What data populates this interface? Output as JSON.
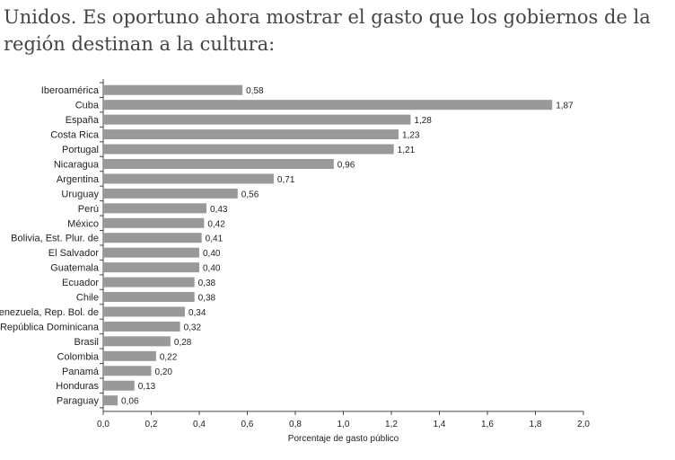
{
  "intro": {
    "line1": "Unidos. Es oportuno ahora mostrar el gasto que los gobiernos de la",
    "line2": "región destinan a la cultura:"
  },
  "chart_data": {
    "type": "bar",
    "orientation": "horizontal",
    "categories": [
      "Iberoamérica",
      "Cuba",
      "España",
      "Costa Rica",
      "Portugal",
      "Nicaragua",
      "Argentina",
      "Uruguay",
      "Perú",
      "México",
      "Bolivia, Est. Plur. de",
      "El Salvador",
      "Guatemala",
      "Ecuador",
      "Chile",
      "Venezuela, Rep. Bol. de",
      "República Dominicana",
      "Brasil",
      "Colombia",
      "Panamá",
      "Honduras",
      "Paraguay"
    ],
    "values": [
      0.58,
      1.87,
      1.28,
      1.23,
      1.21,
      0.96,
      0.71,
      0.56,
      0.43,
      0.42,
      0.41,
      0.4,
      0.4,
      0.38,
      0.38,
      0.34,
      0.32,
      0.28,
      0.22,
      0.2,
      0.13,
      0.06
    ],
    "value_labels": [
      "0,58",
      "1,87",
      "1,28",
      "1,23",
      "1,21",
      "0,96",
      "0,71",
      "0,56",
      "0,43",
      "0,42",
      "0,41",
      "0,40",
      "0,40",
      "0,38",
      "0,38",
      "0,34",
      "0,32",
      "0,28",
      "0,22",
      "0,20",
      "0,13",
      "0,06"
    ],
    "xlim": [
      0,
      2.0
    ],
    "xticks": [
      0,
      0.2,
      0.4,
      0.6,
      0.8,
      1.0,
      1.2,
      1.4,
      1.6,
      1.8,
      2.0
    ],
    "xtick_labels": [
      "0,0",
      "0,2",
      "0,4",
      "0,6",
      "0,8",
      "1,0",
      "1,2",
      "1,4",
      "1,6",
      "1,8",
      "2,0"
    ],
    "xlabel": "Porcentaje de gasto público",
    "ylabel": "",
    "title": "",
    "grid": false,
    "colors": {
      "bar": "#999999",
      "axis": "#444444",
      "text": "#222222"
    }
  }
}
